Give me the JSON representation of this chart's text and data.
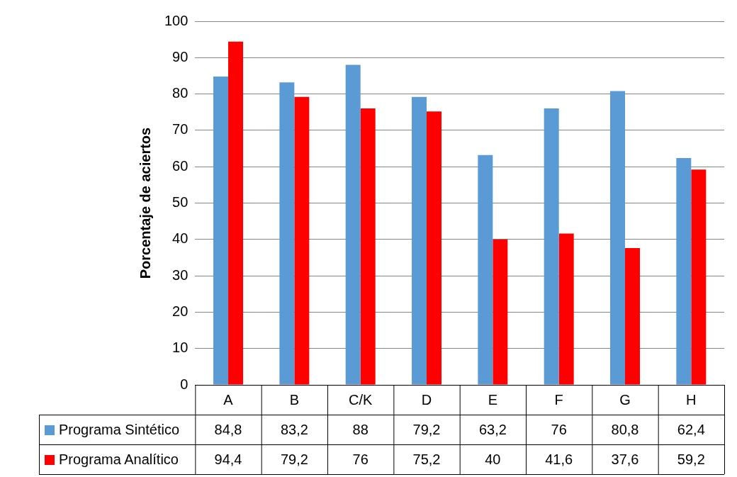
{
  "chart_data": {
    "type": "bar",
    "ylabel": "Porcentaje de aciertos",
    "categories": [
      "A",
      "B",
      "C/K",
      "D",
      "E",
      "F",
      "G",
      "H"
    ],
    "series": [
      {
        "name": "Programa Sintético",
        "color": "#5b9bd5",
        "values": [
          84.8,
          83.2,
          88,
          79.2,
          63.2,
          76,
          80.8,
          62.4
        ],
        "value_labels": [
          "84,8",
          "83,2",
          "88",
          "79,2",
          "63,2",
          "76",
          "80,8",
          "62,4"
        ]
      },
      {
        "name": "Programa Analítico",
        "color": "#ff0000",
        "values": [
          94.4,
          79.2,
          76,
          75.2,
          40,
          41.6,
          37.6,
          59.2
        ],
        "value_labels": [
          "94,4",
          "79,2",
          "76",
          "75,2",
          "40",
          "41,6",
          "37,6",
          "59,2"
        ]
      }
    ],
    "ylim": [
      0,
      100
    ],
    "yticks": [
      0,
      10,
      20,
      30,
      40,
      50,
      60,
      70,
      80,
      90,
      100
    ],
    "grid": "y",
    "legend": "bottom"
  }
}
